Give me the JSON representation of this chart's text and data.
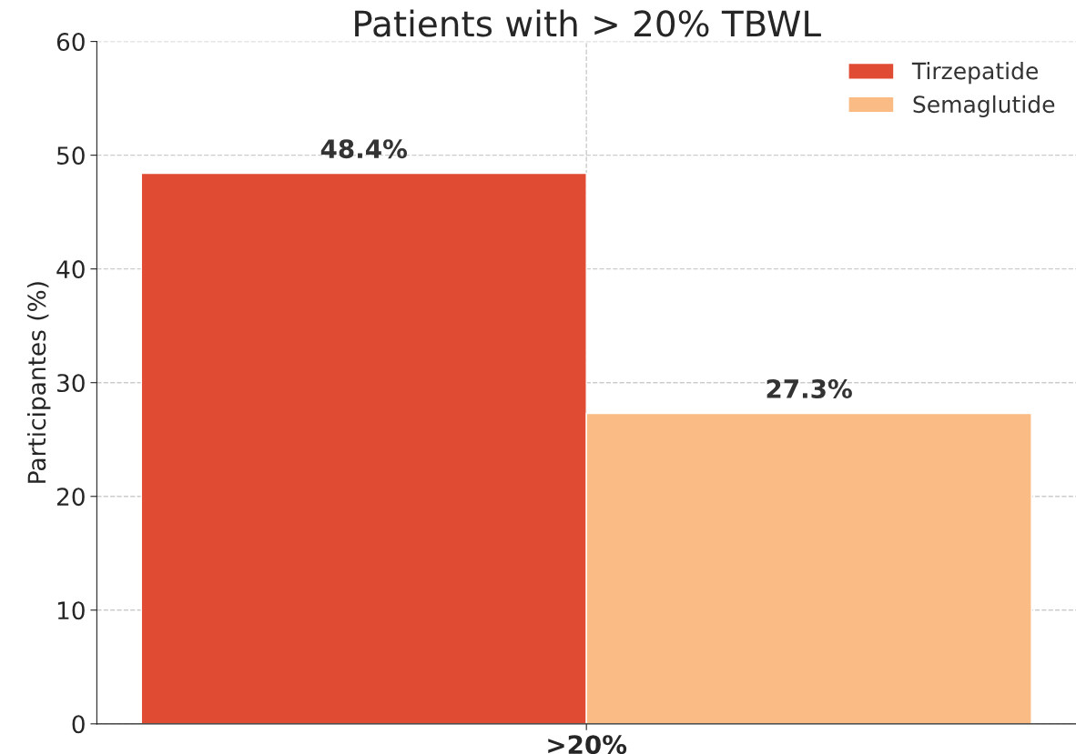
{
  "chart_data": {
    "type": "bar",
    "title": "Patients with > 20% TBWL",
    "ylabel": "Participantes (%)",
    "categories": [
      ">20%"
    ],
    "series": [
      {
        "name": "Tirzepatide",
        "color": "#e04c33",
        "values": [
          48.4
        ],
        "value_labels": [
          "48.4%"
        ]
      },
      {
        "name": "Semaglutide",
        "color": "#fbbb84",
        "values": [
          27.3
        ],
        "value_labels": [
          "27.3%"
        ]
      }
    ],
    "ylim": [
      0,
      60
    ],
    "yticks": [
      0,
      10,
      20,
      30,
      40,
      50,
      60
    ],
    "grid": true,
    "legend": "top right"
  }
}
